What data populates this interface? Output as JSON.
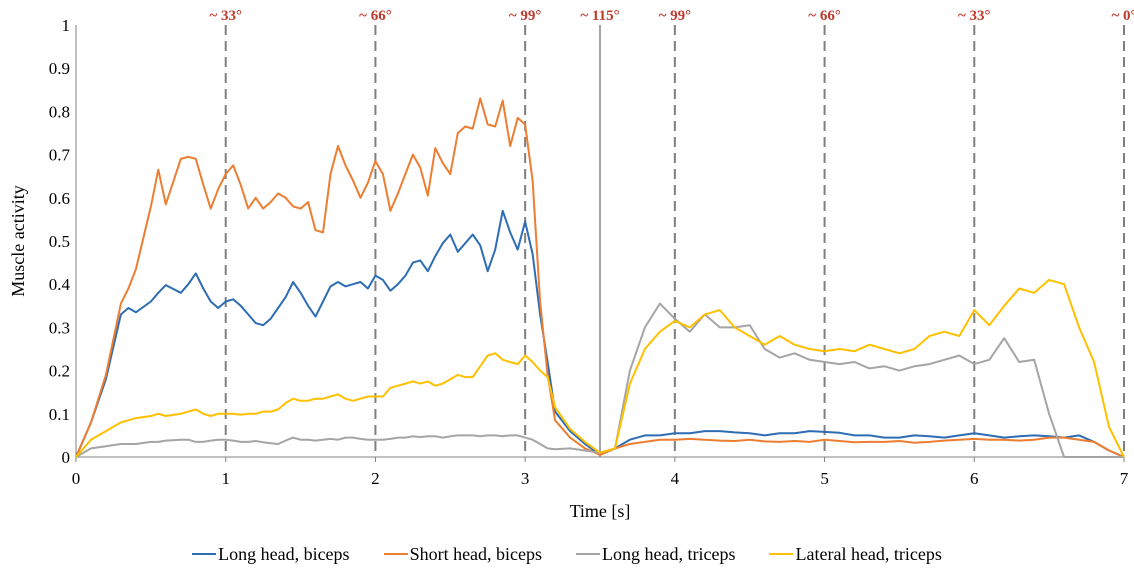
{
  "chart_data": {
    "type": "line",
    "xlabel": "Time [s]",
    "ylabel": "Muscle activity",
    "xlim": [
      0,
      7
    ],
    "ylim": [
      0,
      1
    ],
    "x_ticks": [
      "0",
      "1",
      "2",
      "3",
      "4",
      "5",
      "6",
      "7"
    ],
    "y_ticks": [
      "0",
      "0.1",
      "0.2",
      "0.3",
      "0.4",
      "0.5",
      "0.6",
      "0.7",
      "0.8",
      "0.9",
      "1"
    ],
    "grid": false,
    "legend_position": "bottom",
    "angle_markers": [
      {
        "x": 1,
        "label": "~ 33°",
        "style": "dashed"
      },
      {
        "x": 2,
        "label": "~ 66°",
        "style": "dashed"
      },
      {
        "x": 3,
        "label": "~ 99°",
        "style": "dashed"
      },
      {
        "x": 3.5,
        "label": "~ 115°",
        "style": "solid"
      },
      {
        "x": 4,
        "label": "~ 99°",
        "style": "dashed"
      },
      {
        "x": 5,
        "label": "~ 66°",
        "style": "dashed"
      },
      {
        "x": 6,
        "label": "~ 33°",
        "style": "dashed"
      },
      {
        "x": 7,
        "label": "~ 0°",
        "style": "dashed"
      }
    ],
    "x": [
      0,
      0.1,
      0.2,
      0.3,
      0.35,
      0.4,
      0.5,
      0.55,
      0.6,
      0.7,
      0.75,
      0.8,
      0.85,
      0.9,
      0.95,
      1.0,
      1.05,
      1.1,
      1.15,
      1.2,
      1.25,
      1.3,
      1.35,
      1.4,
      1.45,
      1.5,
      1.55,
      1.6,
      1.65,
      1.7,
      1.75,
      1.8,
      1.85,
      1.9,
      1.95,
      2.0,
      2.05,
      2.1,
      2.15,
      2.2,
      2.25,
      2.3,
      2.35,
      2.4,
      2.45,
      2.5,
      2.55,
      2.6,
      2.65,
      2.7,
      2.75,
      2.8,
      2.85,
      2.9,
      2.95,
      3.0,
      3.05,
      3.1,
      3.15,
      3.2,
      3.3,
      3.4,
      3.5,
      3.6,
      3.7,
      3.8,
      3.9,
      4.0,
      4.1,
      4.2,
      4.3,
      4.4,
      4.5,
      4.6,
      4.7,
      4.8,
      4.9,
      5.0,
      5.1,
      5.2,
      5.3,
      5.4,
      5.5,
      5.6,
      5.7,
      5.8,
      5.9,
      6.0,
      6.1,
      6.2,
      6.3,
      6.4,
      6.5,
      6.6,
      6.7,
      6.8,
      6.9,
      7.0
    ],
    "series": [
      {
        "name": "Long head, biceps",
        "color": "#2E6DB4",
        "values": [
          0.0,
          0.08,
          0.18,
          0.33,
          0.345,
          0.335,
          0.36,
          0.38,
          0.398,
          0.38,
          0.4,
          0.425,
          0.39,
          0.36,
          0.345,
          0.36,
          0.365,
          0.35,
          0.33,
          0.31,
          0.305,
          0.32,
          0.345,
          0.37,
          0.405,
          0.38,
          0.35,
          0.325,
          0.36,
          0.395,
          0.405,
          0.395,
          0.4,
          0.405,
          0.39,
          0.42,
          0.41,
          0.385,
          0.4,
          0.42,
          0.45,
          0.455,
          0.43,
          0.465,
          0.495,
          0.515,
          0.475,
          0.495,
          0.515,
          0.49,
          0.43,
          0.48,
          0.57,
          0.52,
          0.48,
          0.545,
          0.47,
          0.33,
          0.22,
          0.105,
          0.06,
          0.03,
          0.005,
          0.02,
          0.04,
          0.05,
          0.05,
          0.055,
          0.055,
          0.06,
          0.06,
          0.057,
          0.055,
          0.05,
          0.055,
          0.055,
          0.06,
          0.058,
          0.056,
          0.05,
          0.05,
          0.045,
          0.045,
          0.05,
          0.048,
          0.045,
          0.05,
          0.055,
          0.05,
          0.045,
          0.048,
          0.05,
          0.048,
          0.045,
          0.05,
          0.035,
          0.015,
          0.0
        ]
      },
      {
        "name": "Short head, biceps",
        "color": "#ED7D31",
        "values": [
          0.0,
          0.08,
          0.19,
          0.355,
          0.39,
          0.435,
          0.58,
          0.665,
          0.585,
          0.69,
          0.695,
          0.69,
          0.63,
          0.575,
          0.62,
          0.655,
          0.675,
          0.63,
          0.575,
          0.6,
          0.575,
          0.59,
          0.61,
          0.6,
          0.58,
          0.575,
          0.59,
          0.525,
          0.52,
          0.655,
          0.72,
          0.675,
          0.64,
          0.6,
          0.635,
          0.685,
          0.655,
          0.57,
          0.61,
          0.655,
          0.7,
          0.67,
          0.605,
          0.715,
          0.68,
          0.655,
          0.75,
          0.765,
          0.76,
          0.83,
          0.77,
          0.765,
          0.825,
          0.72,
          0.785,
          0.77,
          0.64,
          0.36,
          0.19,
          0.085,
          0.045,
          0.02,
          0.005,
          0.02,
          0.03,
          0.035,
          0.04,
          0.04,
          0.042,
          0.04,
          0.038,
          0.037,
          0.04,
          0.036,
          0.035,
          0.037,
          0.035,
          0.04,
          0.037,
          0.034,
          0.035,
          0.035,
          0.037,
          0.033,
          0.035,
          0.038,
          0.04,
          0.042,
          0.04,
          0.04,
          0.038,
          0.04,
          0.045,
          0.045,
          0.04,
          0.035,
          0.015,
          0.0
        ]
      },
      {
        "name": "Long head, triceps",
        "color": "#A5A5A5",
        "values": [
          0.0,
          0.02,
          0.025,
          0.03,
          0.03,
          0.03,
          0.035,
          0.035,
          0.038,
          0.04,
          0.04,
          0.035,
          0.035,
          0.038,
          0.04,
          0.04,
          0.038,
          0.035,
          0.035,
          0.037,
          0.034,
          0.032,
          0.03,
          0.038,
          0.045,
          0.04,
          0.04,
          0.038,
          0.04,
          0.042,
          0.04,
          0.045,
          0.045,
          0.042,
          0.04,
          0.04,
          0.04,
          0.042,
          0.045,
          0.045,
          0.048,
          0.046,
          0.048,
          0.048,
          0.045,
          0.048,
          0.05,
          0.05,
          0.05,
          0.048,
          0.05,
          0.05,
          0.048,
          0.05,
          0.05,
          0.045,
          0.04,
          0.03,
          0.02,
          0.018,
          0.02,
          0.015,
          0.01,
          0.02,
          0.2,
          0.3,
          0.355,
          0.32,
          0.29,
          0.33,
          0.3,
          0.3,
          0.305,
          0.25,
          0.23,
          0.24,
          0.225,
          0.22,
          0.215,
          0.22,
          0.205,
          0.21,
          0.2,
          0.21,
          0.215,
          0.225,
          0.235,
          0.215,
          0.225,
          0.275,
          0.22,
          0.225,
          0.1,
          0.0,
          0.0,
          0.0,
          0.0,
          0.0
        ]
      },
      {
        "name": "Lateral head, triceps",
        "color": "#FFC000",
        "values": [
          0.0,
          0.04,
          0.06,
          0.08,
          0.085,
          0.09,
          0.095,
          0.1,
          0.095,
          0.1,
          0.105,
          0.11,
          0.1,
          0.095,
          0.1,
          0.1,
          0.1,
          0.098,
          0.1,
          0.1,
          0.105,
          0.105,
          0.11,
          0.125,
          0.135,
          0.13,
          0.13,
          0.135,
          0.135,
          0.14,
          0.145,
          0.135,
          0.13,
          0.135,
          0.14,
          0.14,
          0.14,
          0.16,
          0.165,
          0.17,
          0.175,
          0.17,
          0.175,
          0.165,
          0.17,
          0.18,
          0.19,
          0.185,
          0.185,
          0.21,
          0.235,
          0.24,
          0.225,
          0.22,
          0.215,
          0.235,
          0.22,
          0.2,
          0.185,
          0.115,
          0.065,
          0.035,
          0.01,
          0.02,
          0.17,
          0.25,
          0.29,
          0.315,
          0.3,
          0.33,
          0.34,
          0.3,
          0.28,
          0.26,
          0.28,
          0.26,
          0.25,
          0.245,
          0.25,
          0.245,
          0.26,
          0.25,
          0.24,
          0.25,
          0.28,
          0.29,
          0.28,
          0.34,
          0.305,
          0.35,
          0.39,
          0.38,
          0.41,
          0.4,
          0.3,
          0.22,
          0.07,
          0.0
        ]
      }
    ]
  }
}
